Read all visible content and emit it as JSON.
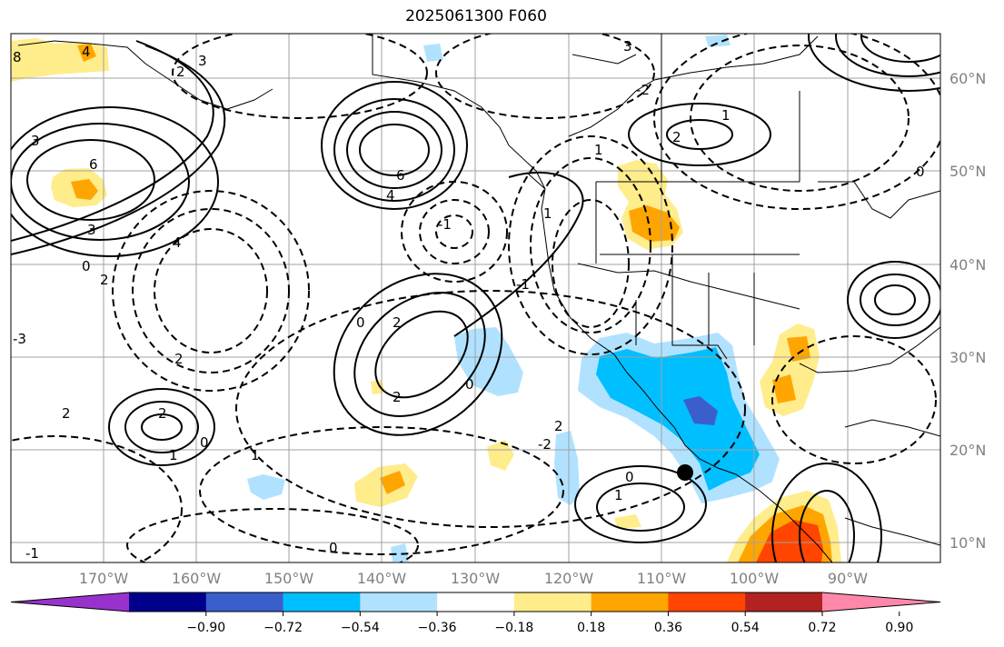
{
  "title": "2025061300 F060",
  "map": {
    "lon_labels": [
      "170°W",
      "160°W",
      "150°W",
      "140°W",
      "130°W",
      "120°W",
      "110°W",
      "100°W",
      "90°W"
    ],
    "lat_labels": [
      "60°N",
      "50°N",
      "40°N",
      "30°N",
      "20°N",
      "10°N"
    ],
    "lon_range": [
      -180,
      -80
    ],
    "lat_range": [
      8,
      65
    ],
    "contour_style": "solid positive, dashed negative, black",
    "marker": {
      "name": "black-dot",
      "lon": -107.5,
      "lat": 17.5
    },
    "contour_labels": [
      "8",
      "4",
      "3",
      "6",
      "3",
      "0",
      "2",
      "4",
      "3",
      "2",
      "-3",
      "2",
      "4",
      "6",
      "1",
      "0",
      "2",
      "-1",
      "2",
      "0",
      "-1",
      "2",
      "1",
      "2",
      "1",
      "0",
      "2",
      "-2",
      "0",
      "1",
      "-1",
      "0",
      "1",
      "1",
      "2",
      "0",
      "3",
      "-2"
    ]
  },
  "colorbar": {
    "ticks": [
      "−0.90",
      "−0.72",
      "−0.54",
      "−0.36",
      "−0.18",
      "0.18",
      "0.36",
      "0.54",
      "0.72",
      "0.90"
    ],
    "colors": [
      "#9932cc",
      "#00008b",
      "#3a5fcd",
      "#00bfff",
      "#b0e2ff",
      "#ffffff",
      "#ffec8b",
      "#ffa500",
      "#ff4500",
      "#b22222",
      "#ff88aa"
    ],
    "extend": "both"
  }
}
